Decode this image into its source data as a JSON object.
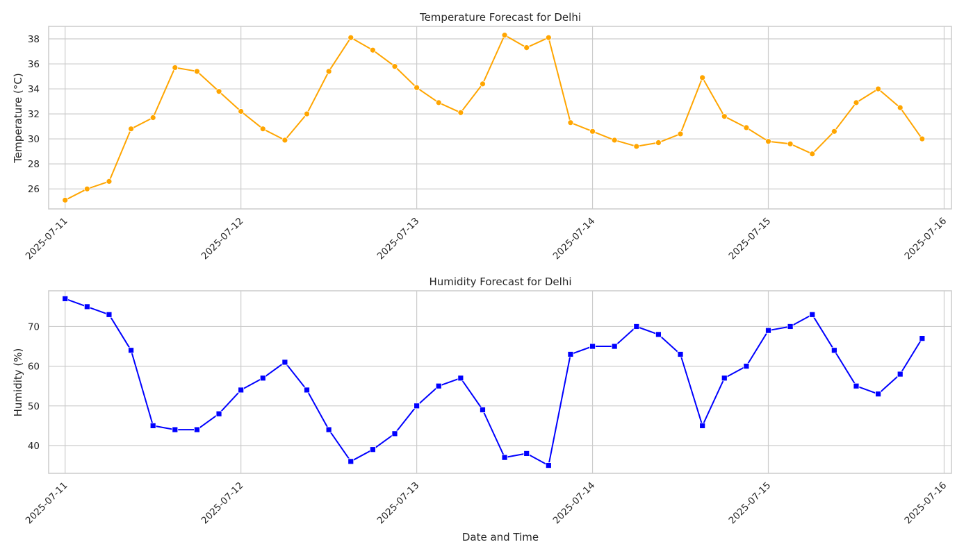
{
  "xlabel": "Date and Time",
  "x_ticks": [
    "2025-07-11",
    "2025-07-12",
    "2025-07-13",
    "2025-07-14",
    "2025-07-15",
    "2025-07-16"
  ],
  "chart_data": [
    {
      "id": "temperature",
      "type": "line",
      "title": "Temperature Forecast for Delhi",
      "ylabel": "Temperature (°C)",
      "xlabel": "",
      "ylim": [
        24.4,
        39.0
      ],
      "yticks": [
        26,
        28,
        30,
        32,
        34,
        36,
        38
      ],
      "grid": true,
      "marker": "circle",
      "color": "#FFA500",
      "x": [
        "2025-07-11 00:00",
        "2025-07-11 03:00",
        "2025-07-11 06:00",
        "2025-07-11 09:00",
        "2025-07-11 12:00",
        "2025-07-11 15:00",
        "2025-07-11 18:00",
        "2025-07-11 21:00",
        "2025-07-12 00:00",
        "2025-07-12 03:00",
        "2025-07-12 06:00",
        "2025-07-12 09:00",
        "2025-07-12 12:00",
        "2025-07-12 15:00",
        "2025-07-12 18:00",
        "2025-07-12 21:00",
        "2025-07-13 00:00",
        "2025-07-13 03:00",
        "2025-07-13 06:00",
        "2025-07-13 09:00",
        "2025-07-13 12:00",
        "2025-07-13 15:00",
        "2025-07-13 18:00",
        "2025-07-13 21:00",
        "2025-07-14 00:00",
        "2025-07-14 03:00",
        "2025-07-14 06:00",
        "2025-07-14 09:00",
        "2025-07-14 12:00",
        "2025-07-14 15:00",
        "2025-07-14 18:00",
        "2025-07-14 21:00",
        "2025-07-15 00:00",
        "2025-07-15 03:00",
        "2025-07-15 06:00",
        "2025-07-15 09:00",
        "2025-07-15 12:00",
        "2025-07-15 15:00",
        "2025-07-15 18:00",
        "2025-07-15 21:00"
      ],
      "values": [
        25.1,
        26.0,
        26.6,
        30.8,
        31.7,
        35.7,
        35.4,
        33.8,
        32.2,
        30.8,
        29.9,
        32.0,
        35.4,
        38.1,
        37.1,
        35.8,
        34.1,
        32.9,
        32.1,
        34.4,
        38.3,
        37.3,
        38.1,
        31.3,
        30.6,
        29.9,
        29.4,
        29.7,
        30.4,
        34.9,
        31.8,
        30.9,
        29.8,
        29.6,
        28.8,
        30.6,
        32.9,
        34.0,
        32.5,
        30.0
      ]
    },
    {
      "id": "humidity",
      "type": "line",
      "title": "Humidity Forecast for Delhi",
      "ylabel": "Humidity (%)",
      "xlabel": "Date and Time",
      "ylim": [
        33.0,
        79.0
      ],
      "yticks": [
        40,
        50,
        60,
        70
      ],
      "grid": true,
      "marker": "square",
      "color": "#0000FF",
      "x": [
        "2025-07-11 00:00",
        "2025-07-11 03:00",
        "2025-07-11 06:00",
        "2025-07-11 09:00",
        "2025-07-11 12:00",
        "2025-07-11 15:00",
        "2025-07-11 18:00",
        "2025-07-11 21:00",
        "2025-07-12 00:00",
        "2025-07-12 03:00",
        "2025-07-12 06:00",
        "2025-07-12 09:00",
        "2025-07-12 12:00",
        "2025-07-12 15:00",
        "2025-07-12 18:00",
        "2025-07-12 21:00",
        "2025-07-13 00:00",
        "2025-07-13 03:00",
        "2025-07-13 06:00",
        "2025-07-13 09:00",
        "2025-07-13 12:00",
        "2025-07-13 15:00",
        "2025-07-13 18:00",
        "2025-07-13 21:00",
        "2025-07-14 00:00",
        "2025-07-14 03:00",
        "2025-07-14 06:00",
        "2025-07-14 09:00",
        "2025-07-14 12:00",
        "2025-07-14 15:00",
        "2025-07-14 18:00",
        "2025-07-14 21:00",
        "2025-07-15 00:00",
        "2025-07-15 03:00",
        "2025-07-15 06:00",
        "2025-07-15 09:00",
        "2025-07-15 12:00",
        "2025-07-15 15:00",
        "2025-07-15 18:00",
        "2025-07-15 21:00"
      ],
      "values": [
        77,
        75,
        73,
        64,
        45,
        44,
        44,
        48,
        54,
        57,
        61,
        54,
        44,
        36,
        39,
        43,
        50,
        55,
        57,
        49,
        37,
        38,
        35,
        63,
        65,
        65,
        70,
        68,
        63,
        45,
        57,
        60,
        69,
        70,
        73,
        64,
        55,
        53,
        58,
        67
      ]
    }
  ]
}
